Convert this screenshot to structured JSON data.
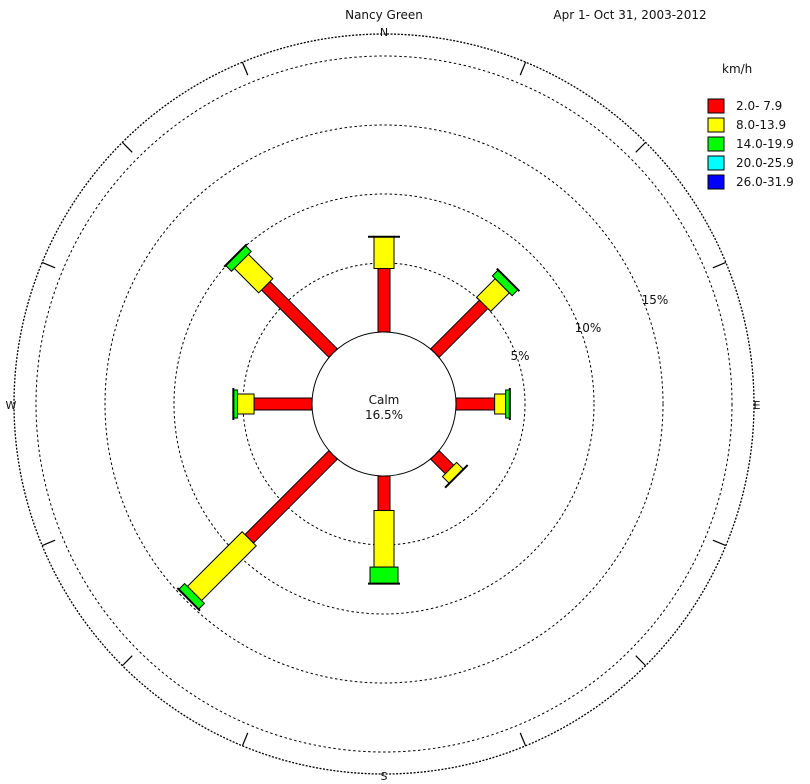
{
  "chart_data": {
    "type": "wind-rose",
    "title": "Nancy Green",
    "subtitle": "Apr 1- Oct 31, 2003-2012",
    "legend_title": "km/h",
    "legend_placement": "top-right",
    "calm": {
      "label": "Calm",
      "value_label": "16.5%",
      "value": 16.5
    },
    "rings": [
      {
        "value": 5,
        "label": "5%"
      },
      {
        "value": 10,
        "label": "10%"
      },
      {
        "value": 15,
        "label": "15%"
      },
      {
        "value": 20,
        "label": ""
      }
    ],
    "compass": {
      "north": "N",
      "east": "E",
      "south": "S",
      "west": "W"
    },
    "speed_bins": [
      {
        "label": "2.0- 7.9",
        "color": "#ff0000"
      },
      {
        "label": "8.0-13.9",
        "color": "#ffff00"
      },
      {
        "label": "14.0-19.9",
        "color": "#00ff00"
      },
      {
        "label": "20.0-25.9",
        "color": "#00ffff"
      },
      {
        "label": "26.0-31.9",
        "color": "#0000ff"
      }
    ],
    "directions": [
      {
        "dir": "N",
        "angle": 0,
        "values": [
          4.6,
          2.3,
          0.0,
          0.0,
          0.0
        ]
      },
      {
        "dir": "NE",
        "angle": 45,
        "values": [
          5.0,
          1.9,
          0.6,
          0.0,
          0.0
        ]
      },
      {
        "dir": "E",
        "angle": 90,
        "values": [
          2.8,
          0.8,
          0.3,
          0.0,
          0.0
        ]
      },
      {
        "dir": "SE",
        "angle": 135,
        "values": [
          1.5,
          0.7,
          0.0,
          0.0,
          0.0
        ]
      },
      {
        "dir": "S",
        "angle": 180,
        "values": [
          2.5,
          4.1,
          1.2,
          0.0,
          0.0
        ]
      },
      {
        "dir": "SW",
        "angle": 225,
        "values": [
          8.6,
          5.6,
          0.6,
          0.0,
          0.0
        ]
      },
      {
        "dir": "W",
        "angle": 270,
        "values": [
          4.2,
          1.2,
          0.3,
          0.0,
          0.0
        ]
      },
      {
        "dir": "NW",
        "angle": 315,
        "values": [
          6.9,
          2.5,
          0.6,
          0.0,
          0.0
        ]
      }
    ]
  }
}
